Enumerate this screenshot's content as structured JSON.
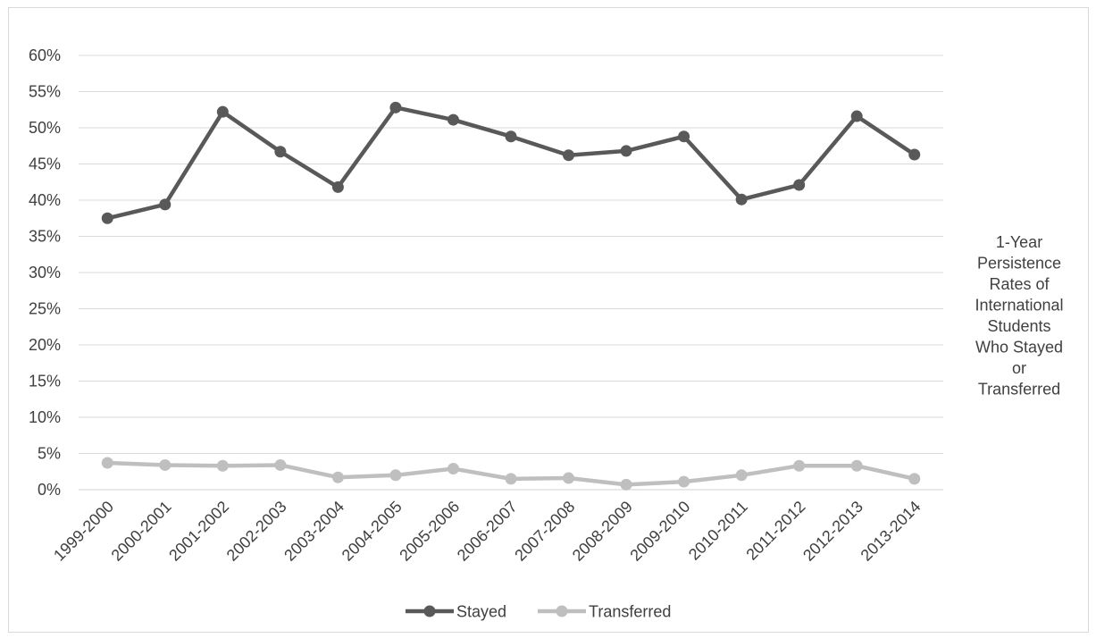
{
  "chart_data": {
    "type": "line",
    "title_lines": [
      "1-Year",
      "Persistence",
      "Rates of",
      "International",
      "Students",
      "Who Stayed",
      "or",
      "Transferred"
    ],
    "categories": [
      "1999-2000",
      "2000-2001",
      "2001-2002",
      "2002-2003",
      "2003-2004",
      "2004-2005",
      "2005-2006",
      "2006-2007",
      "2007-2008",
      "2008-2009",
      "2009-2010",
      "2010-2011",
      "2011-2012",
      "2012-2013",
      "2013-2014"
    ],
    "series": [
      {
        "name": "Stayed",
        "color": "#595959",
        "values": [
          37.5,
          39.4,
          52.2,
          46.7,
          41.8,
          52.8,
          51.1,
          48.8,
          46.2,
          46.8,
          48.8,
          40.1,
          42.1,
          51.6,
          46.3
        ]
      },
      {
        "name": "Transferred",
        "color": "#bfbfbf",
        "values": [
          3.7,
          3.4,
          3.3,
          3.4,
          1.7,
          2.0,
          2.9,
          1.5,
          1.6,
          0.7,
          1.1,
          2.0,
          3.3,
          3.3,
          1.5
        ]
      }
    ],
    "ylim": [
      0,
      60
    ],
    "ytick_step": 5,
    "ytick_format": "percent",
    "grid": true,
    "legend_position": "bottom"
  }
}
